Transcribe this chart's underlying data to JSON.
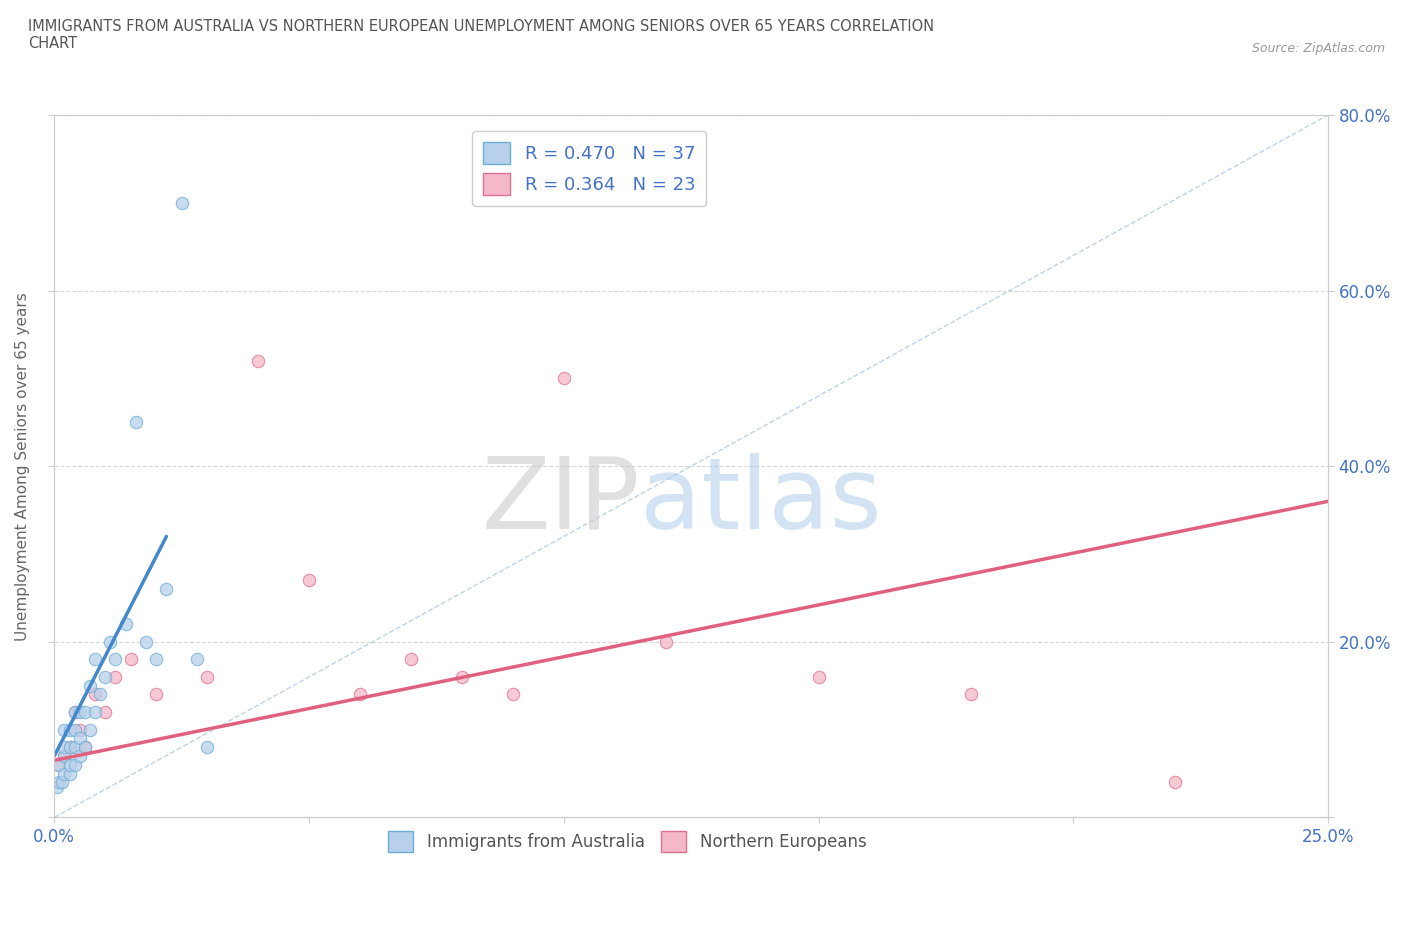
{
  "title": "IMMIGRANTS FROM AUSTRALIA VS NORTHERN EUROPEAN UNEMPLOYMENT AMONG SENIORS OVER 65 YEARS CORRELATION\nCHART",
  "source": "Source: ZipAtlas.com",
  "ylabel": "Unemployment Among Seniors over 65 years",
  "xlim": [
    0.0,
    0.25
  ],
  "ylim": [
    0.0,
    0.8
  ],
  "xticks": [
    0.0,
    0.05,
    0.1,
    0.15,
    0.2,
    0.25
  ],
  "yticks": [
    0.0,
    0.2,
    0.4,
    0.6,
    0.8
  ],
  "xtick_labels": [
    "0.0%",
    "",
    "",
    "",
    "",
    "25.0%"
  ],
  "ytick_labels_right": [
    "",
    "20.0%",
    "40.0%",
    "60.0%",
    "80.0%"
  ],
  "blue_R": 0.47,
  "blue_N": 37,
  "pink_R": 0.364,
  "pink_N": 23,
  "blue_color": "#b8d0ea",
  "blue_edge": "#6baed6",
  "pink_color": "#f4b8c8",
  "pink_edge": "#e07090",
  "scatter_size": 80,
  "blue_scatter_x": [
    0.0005,
    0.001,
    0.001,
    0.0015,
    0.002,
    0.002,
    0.002,
    0.002,
    0.003,
    0.003,
    0.003,
    0.003,
    0.004,
    0.004,
    0.004,
    0.004,
    0.005,
    0.005,
    0.005,
    0.006,
    0.006,
    0.007,
    0.007,
    0.008,
    0.008,
    0.009,
    0.01,
    0.011,
    0.012,
    0.014,
    0.016,
    0.018,
    0.02,
    0.022,
    0.025,
    0.028,
    0.03
  ],
  "blue_scatter_y": [
    0.035,
    0.04,
    0.06,
    0.04,
    0.05,
    0.07,
    0.08,
    0.1,
    0.05,
    0.06,
    0.08,
    0.1,
    0.06,
    0.08,
    0.1,
    0.12,
    0.07,
    0.09,
    0.12,
    0.08,
    0.12,
    0.1,
    0.15,
    0.12,
    0.18,
    0.14,
    0.16,
    0.2,
    0.18,
    0.22,
    0.45,
    0.2,
    0.18,
    0.26,
    0.7,
    0.18,
    0.08
  ],
  "pink_scatter_x": [
    0.001,
    0.002,
    0.003,
    0.004,
    0.005,
    0.006,
    0.008,
    0.01,
    0.012,
    0.015,
    0.02,
    0.03,
    0.04,
    0.05,
    0.06,
    0.07,
    0.08,
    0.09,
    0.1,
    0.12,
    0.15,
    0.18,
    0.22
  ],
  "pink_scatter_y": [
    0.06,
    0.07,
    0.08,
    0.12,
    0.1,
    0.08,
    0.14,
    0.12,
    0.16,
    0.18,
    0.14,
    0.16,
    0.52,
    0.27,
    0.14,
    0.18,
    0.16,
    0.14,
    0.5,
    0.2,
    0.16,
    0.14,
    0.04
  ],
  "blue_line_x": [
    0.0,
    0.022
  ],
  "blue_line_y": [
    0.07,
    0.32
  ],
  "pink_line_x": [
    0.0,
    0.25
  ],
  "pink_line_y": [
    0.065,
    0.36
  ],
  "diag_line_x": [
    0.0,
    0.25
  ],
  "diag_line_y": [
    0.0,
    0.8
  ],
  "watermark_zip": "ZIP",
  "watermark_atlas": "atlas",
  "background_color": "#ffffff",
  "grid_color": "#d8d8d8"
}
